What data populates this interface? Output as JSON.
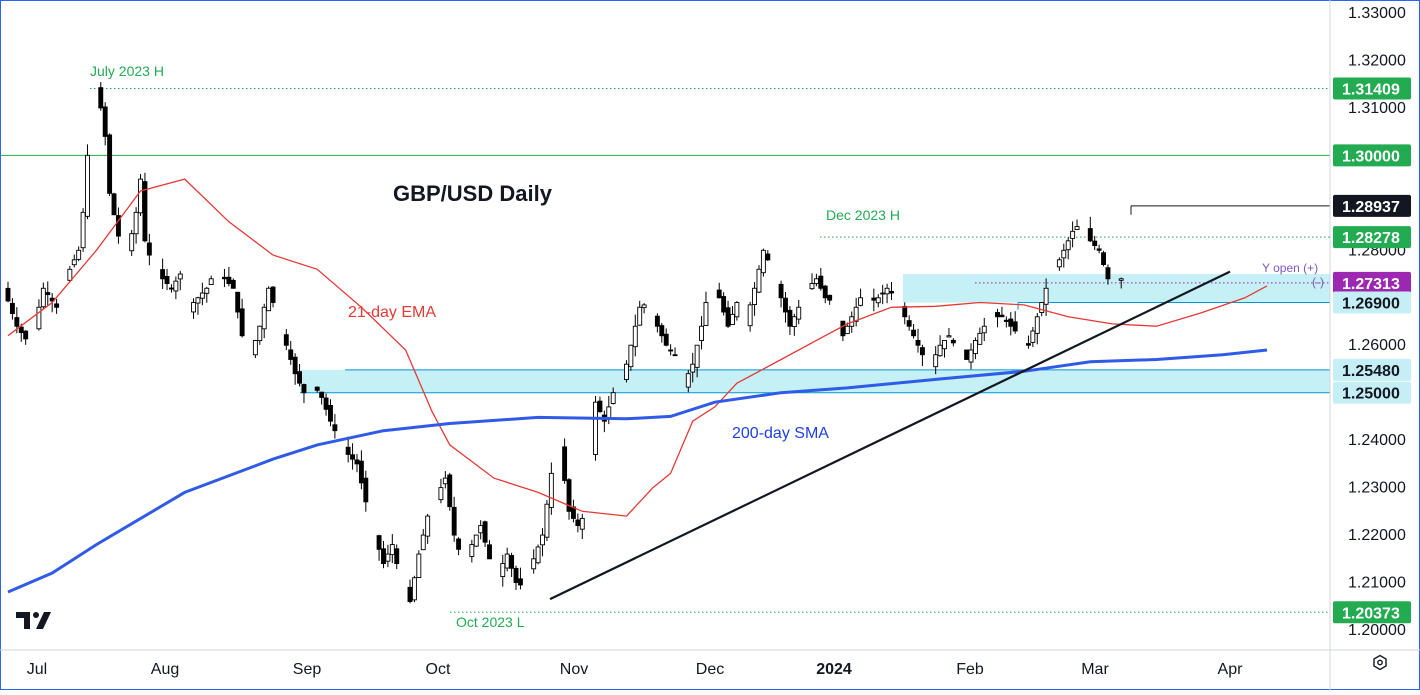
{
  "chart_data": {
    "type": "candlestick",
    "title": "GBP/USD Daily",
    "y_range": [
      1.2,
      1.33
    ],
    "y_ticks": [
      "1.33000",
      "1.32000",
      "1.31000",
      "1.30000",
      "1.29000",
      "1.28000",
      "1.27000",
      "1.26000",
      "1.25000",
      "1.24000",
      "1.23000",
      "1.22000",
      "1.21000",
      "1.20000"
    ],
    "x_labels": [
      {
        "label": "Jul",
        "bold": false
      },
      {
        "label": "Aug",
        "bold": false
      },
      {
        "label": "Sep",
        "bold": false
      },
      {
        "label": "Oct",
        "bold": false
      },
      {
        "label": "Nov",
        "bold": false
      },
      {
        "label": "Dec",
        "bold": false
      },
      {
        "label": "2024",
        "bold": true
      },
      {
        "label": "Feb",
        "bold": false
      },
      {
        "label": "Mar",
        "bold": false
      },
      {
        "label": "Apr",
        "bold": false
      }
    ],
    "zones": [
      {
        "label": "1.25000 – 1.25480 support zone",
        "low": 1.25,
        "high": 1.2548
      },
      {
        "label": "1.2690 – 1.2750 range zone",
        "low": 1.269,
        "high": 1.275
      }
    ],
    "levels": [
      {
        "value": 1.31409,
        "label": "1.31409",
        "color": "#22ab51",
        "style": "dotted"
      },
      {
        "value": 1.3,
        "label": "1.30000",
        "color": "#22ab51",
        "style": "solid"
      },
      {
        "value": 1.28937,
        "label": "1.28937",
        "color": "#131722",
        "style": "solid"
      },
      {
        "value": 1.28278,
        "label": "1.28278",
        "color": "#22ab51",
        "style": "dotted"
      },
      {
        "value": 1.27313,
        "label": "1.27313",
        "color": "#9c27b0",
        "style": "dotted"
      },
      {
        "value": 1.269,
        "label": "1.26900",
        "color": "#0097d6",
        "style": "solid"
      },
      {
        "value": 1.2548,
        "label": "1.25480",
        "color": "#0097d6",
        "style": "solid"
      },
      {
        "value": 1.25,
        "label": "1.25000",
        "color": "#0097d6",
        "style": "solid"
      },
      {
        "value": 1.20373,
        "label": "1.20373",
        "color": "#22ab51",
        "style": "dotted"
      }
    ],
    "annotations": [
      {
        "text": "July 2023 H",
        "color": "#22ab51"
      },
      {
        "text": "Dec 2023 H",
        "color": "#22ab51"
      },
      {
        "text": "Oct 2023 L",
        "color": "#22ab51"
      },
      {
        "text": "21-day EMA",
        "color": "#e53935"
      },
      {
        "text": "200-day SMA",
        "color": "#1e40e6"
      },
      {
        "text": "Y open (+)",
        "color": "#7e57c2"
      },
      {
        "text": "(-)",
        "color": "#7e57c2"
      }
    ],
    "trendline": {
      "from": {
        "date": "Oct 26 2023",
        "value": 1.2065
      },
      "to": {
        "date": "Mar 20 2024",
        "value": 1.2755
      }
    },
    "ema21": [
      [
        0,
        1.262
      ],
      [
        10,
        1.269
      ],
      [
        20,
        1.28
      ],
      [
        30,
        1.2925
      ],
      [
        40,
        1.295
      ],
      [
        50,
        1.286
      ],
      [
        60,
        1.279
      ],
      [
        70,
        1.276
      ],
      [
        80,
        1.268
      ],
      [
        90,
        1.259
      ],
      [
        96,
        1.246
      ],
      [
        100,
        1.239
      ],
      [
        110,
        1.232
      ],
      [
        120,
        1.229
      ],
      [
        130,
        1.225
      ],
      [
        140,
        1.224
      ],
      [
        146,
        1.23
      ],
      [
        150,
        1.233
      ],
      [
        155,
        1.244
      ],
      [
        160,
        1.247
      ],
      [
        165,
        1.252
      ],
      [
        175,
        1.257
      ],
      [
        185,
        1.262
      ],
      [
        190,
        1.2645
      ],
      [
        200,
        1.268
      ],
      [
        210,
        1.2682
      ],
      [
        220,
        1.269
      ],
      [
        230,
        1.2685
      ],
      [
        240,
        1.266
      ],
      [
        250,
        1.2645
      ],
      [
        260,
        1.264
      ],
      [
        270,
        1.2668
      ],
      [
        280,
        1.27
      ],
      [
        285,
        1.2725
      ]
    ],
    "sma200": [
      [
        0,
        1.208
      ],
      [
        10,
        1.212
      ],
      [
        20,
        1.218
      ],
      [
        40,
        1.229
      ],
      [
        60,
        1.236
      ],
      [
        70,
        1.239
      ],
      [
        85,
        1.242
      ],
      [
        100,
        1.2435
      ],
      [
        120,
        1.2448
      ],
      [
        140,
        1.2445
      ],
      [
        150,
        1.245
      ],
      [
        160,
        1.248
      ],
      [
        175,
        1.25
      ],
      [
        190,
        1.251
      ],
      [
        210,
        1.2528
      ],
      [
        230,
        1.2545
      ],
      [
        245,
        1.2565
      ],
      [
        260,
        1.257
      ],
      [
        275,
        1.258
      ],
      [
        285,
        1.259
      ]
    ]
  }
}
